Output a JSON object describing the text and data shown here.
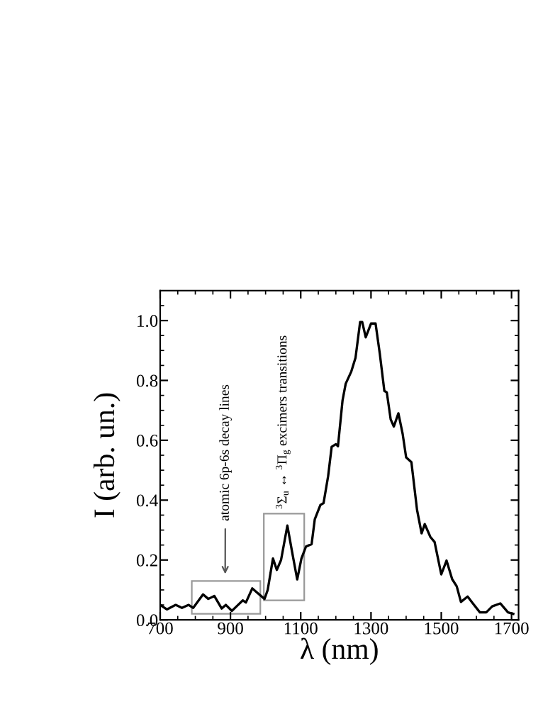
{
  "chart_data": {
    "type": "line",
    "xlabel": "λ (nm)",
    "ylabel": "I (arb. un.)",
    "x": [
      700,
      719,
      744,
      762,
      781,
      794,
      822,
      837,
      854,
      875,
      887,
      904,
      919,
      935,
      944,
      962,
      977,
      997,
      1006,
      1021,
      1032,
      1044,
      1062,
      1075,
      1090,
      1102,
      1115,
      1131,
      1140,
      1156,
      1165,
      1178,
      1188,
      1200,
      1206,
      1219,
      1228,
      1244,
      1256,
      1269,
      1275,
      1285,
      1300,
      1313,
      1325,
      1338,
      1345,
      1356,
      1365,
      1378,
      1390,
      1400,
      1415,
      1431,
      1444,
      1453,
      1469,
      1481,
      1500,
      1515,
      1531,
      1544,
      1556,
      1575,
      1590,
      1610,
      1628,
      1645,
      1668,
      1690,
      1705
    ],
    "series": [
      {
        "color": "#000000",
        "values": [
          0.05,
          0.035,
          0.05,
          0.04,
          0.05,
          0.04,
          0.085,
          0.07,
          0.08,
          0.038,
          0.05,
          0.03,
          0.047,
          0.065,
          0.058,
          0.105,
          0.09,
          0.07,
          0.1,
          0.205,
          0.167,
          0.2,
          0.315,
          0.23,
          0.135,
          0.205,
          0.245,
          0.253,
          0.336,
          0.384,
          0.39,
          0.48,
          0.578,
          0.587,
          0.58,
          0.733,
          0.789,
          0.83,
          0.876,
          0.995,
          0.995,
          0.944,
          0.99,
          0.99,
          0.89,
          0.765,
          0.76,
          0.67,
          0.646,
          0.69,
          0.622,
          0.543,
          0.527,
          0.368,
          0.289,
          0.32,
          0.277,
          0.26,
          0.152,
          0.198,
          0.136,
          0.112,
          0.06,
          0.078,
          0.055,
          0.025,
          0.025,
          0.045,
          0.055,
          0.025,
          0.02
        ]
      }
    ],
    "xlim": [
      700,
      1720
    ],
    "xticks": [
      700,
      900,
      1100,
      1300,
      1500,
      1700
    ],
    "ylim": [
      0,
      1.1
    ],
    "yticks": [
      {
        "value": 0,
        "label": "0.0"
      },
      0.2,
      0.4,
      0.6,
      0.8,
      {
        "value": 1,
        "label": "1.0"
      }
    ],
    "grid": false,
    "marker": "none",
    "line_style": "solid",
    "annotations": [
      "atomic 6p-6s decay lines",
      "$^{3}$Σ$_{u}$ ↔ $^{3}$Π$_{g}$ excimers transitions"
    ]
  }
}
